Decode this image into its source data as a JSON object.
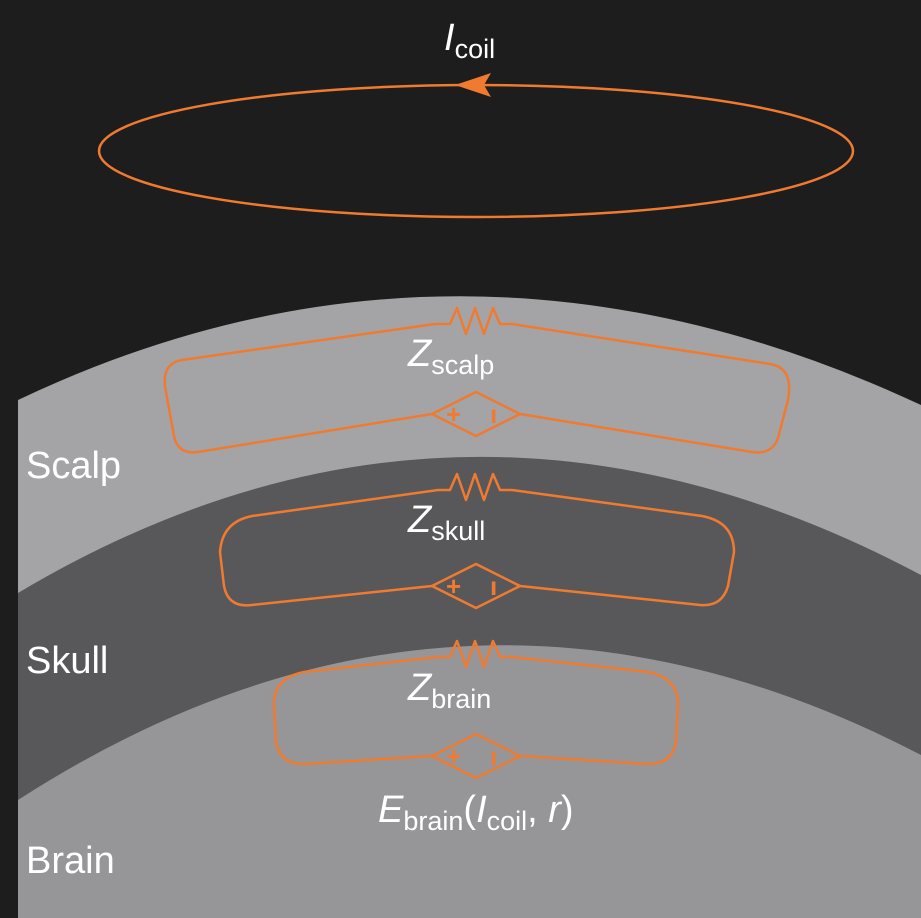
{
  "colors": {
    "background": "#1d1d1d",
    "scalp": "#a4a4a6",
    "skull": "#58585a",
    "brain": "#969698",
    "circuit": "#f07a30",
    "text": "#ffffff"
  },
  "coil": {
    "label_symbol": "I",
    "label_subscript": "coil",
    "current_direction": "counter-clockwise (arrow pointing left on top edge)"
  },
  "layers": [
    {
      "id": "scalp",
      "label": "Scalp",
      "impedance_symbol": "Z",
      "impedance_subscript": "scalp"
    },
    {
      "id": "skull",
      "label": "Skull",
      "impedance_symbol": "Z",
      "impedance_subscript": "skull"
    },
    {
      "id": "brain",
      "label": "Brain",
      "impedance_symbol": "Z",
      "impedance_subscript": "brain"
    }
  ],
  "source_signs": {
    "plus": "+",
    "minus": "ı"
  },
  "brain_field": {
    "symbol": "E",
    "subscript": "brain",
    "open": "(",
    "arg1_symbol": "I",
    "arg1_subscript": "coil",
    "separator": ", ",
    "arg2": "r",
    "close": ")"
  }
}
